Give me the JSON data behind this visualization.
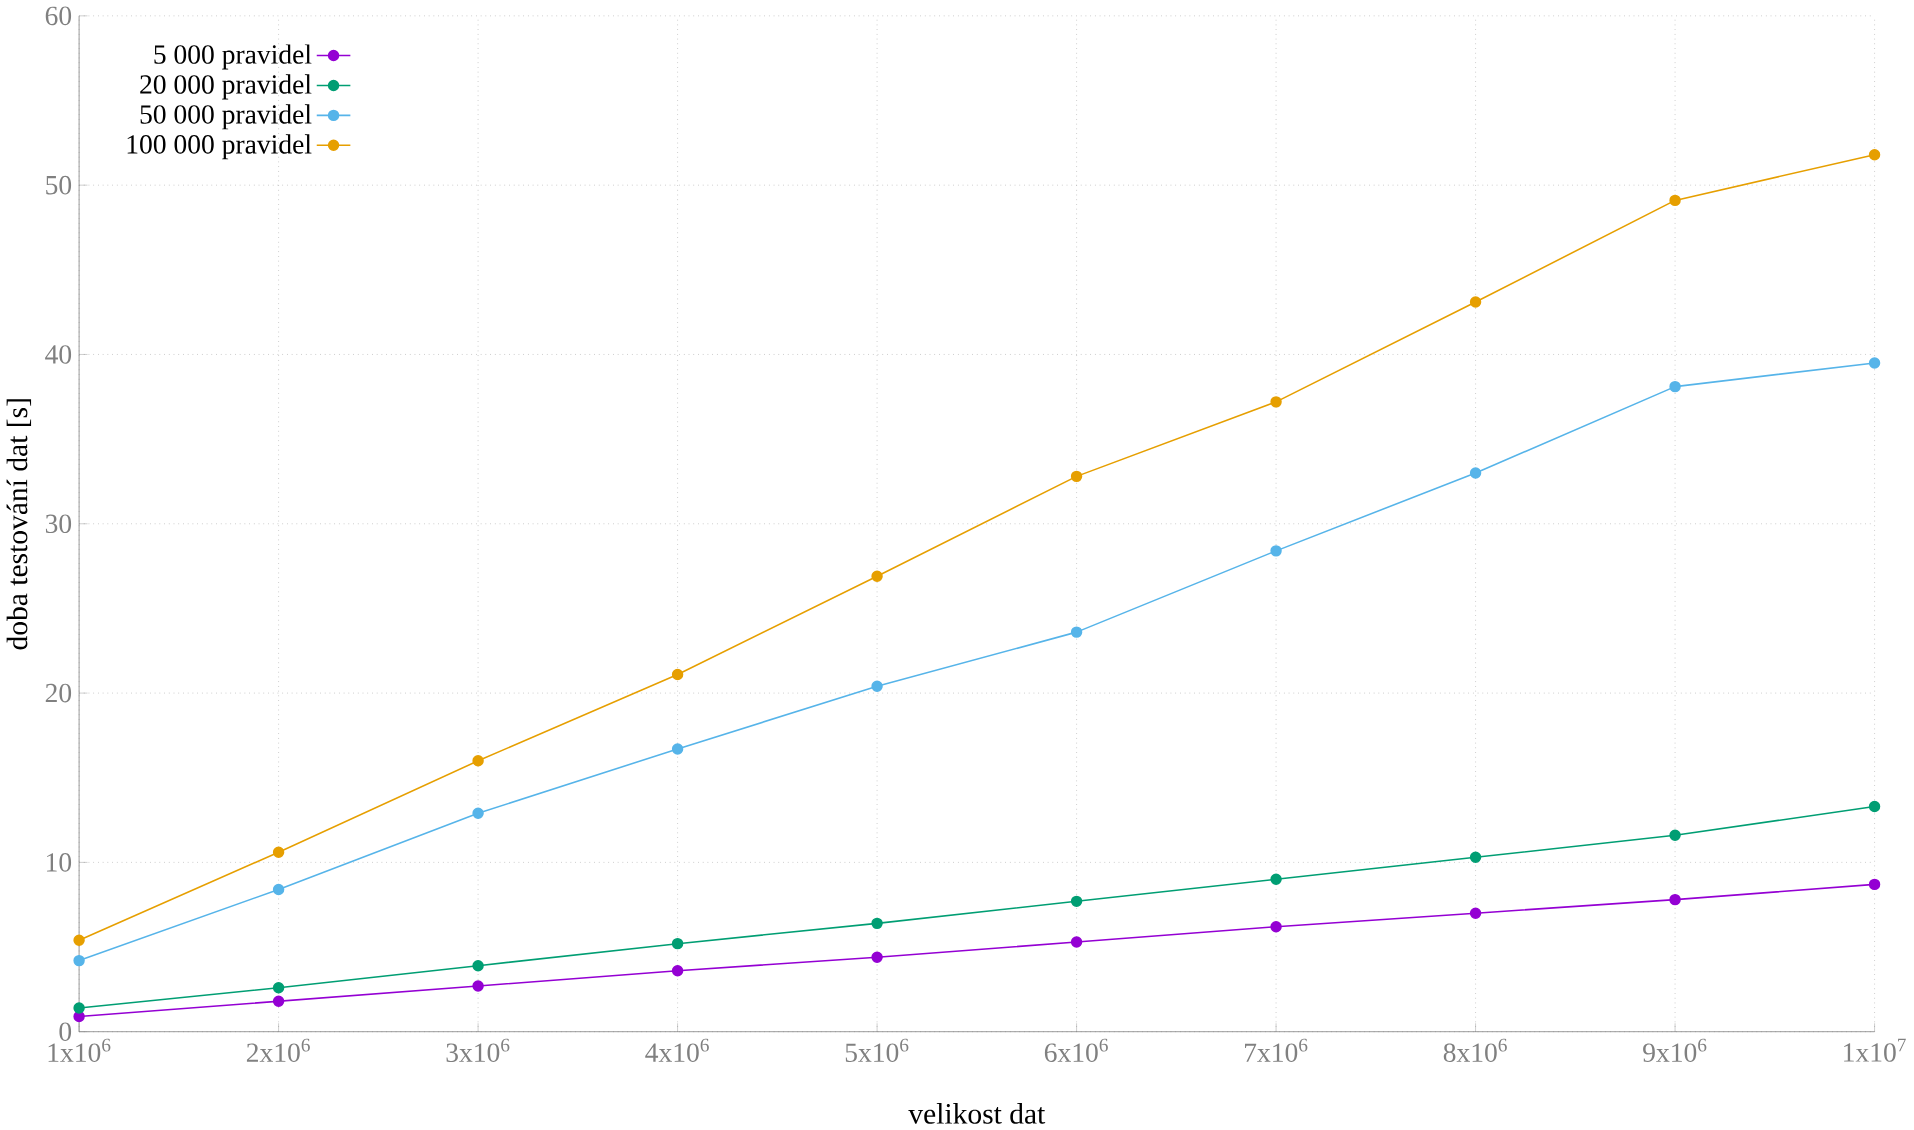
{
  "chart_data": {
    "type": "line",
    "xlabel": "velikost dat",
    "ylabel": "doba testování dat [s]",
    "x": [
      1000000,
      2000000,
      3000000,
      4000000,
      5000000,
      6000000,
      7000000,
      8000000,
      9000000,
      10000000
    ],
    "series": [
      {
        "name": "5 000 pravidel",
        "color": "#9400d3",
        "values": [
          0.9,
          1.8,
          2.7,
          3.6,
          4.4,
          5.3,
          6.2,
          7.0,
          7.8,
          8.7
        ]
      },
      {
        "name": "20 000 pravidel",
        "color": "#009e73",
        "values": [
          1.4,
          2.6,
          3.9,
          5.2,
          6.4,
          7.7,
          9.0,
          10.3,
          11.6,
          13.3
        ]
      },
      {
        "name": "50 000 pravidel",
        "color": "#56b4e9",
        "values": [
          4.2,
          8.4,
          12.9,
          16.7,
          20.4,
          23.6,
          28.4,
          33.0,
          38.1,
          39.5
        ]
      },
      {
        "name": "100 000 pravidel",
        "color": "#e69f00",
        "values": [
          5.4,
          10.6,
          16.0,
          21.1,
          26.9,
          32.8,
          37.2,
          43.1,
          49.1,
          51.8
        ]
      }
    ],
    "xlim": [
      1000000,
      10000000
    ],
    "ylim": [
      0,
      60
    ],
    "xticks": [
      {
        "value": 1000000,
        "label": "1x10$^{6}$"
      },
      {
        "value": 2000000,
        "label": "2x10$^{6}$"
      },
      {
        "value": 3000000,
        "label": "3x10$^{6}$"
      },
      {
        "value": 4000000,
        "label": "4x10$^{6}$"
      },
      {
        "value": 5000000,
        "label": "5x10$^{6}$"
      },
      {
        "value": 6000000,
        "label": "6x10$^{6}$"
      },
      {
        "value": 7000000,
        "label": "7x10$^{6}$"
      },
      {
        "value": 8000000,
        "label": "8x10$^{6}$"
      },
      {
        "value": 9000000,
        "label": "9x10$^{6}$"
      },
      {
        "value": 10000000,
        "label": "1x10$^{7}$"
      }
    ],
    "yticks": [
      0,
      10,
      20,
      30,
      40,
      50,
      60
    ],
    "grid": true,
    "legend": "top left",
    "marker": "circle",
    "line_style": "solid"
  }
}
